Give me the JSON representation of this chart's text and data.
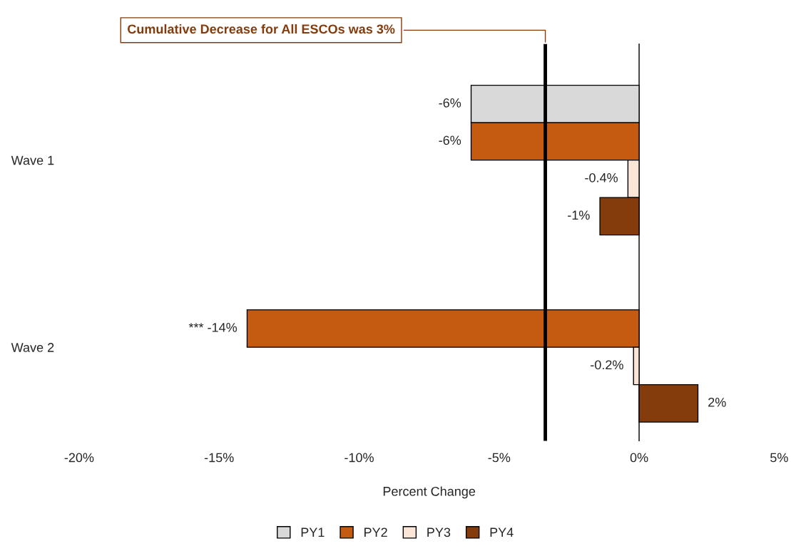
{
  "chart_data": {
    "type": "bar",
    "orientation": "horizontal",
    "categories": [
      "Wave 1",
      "Wave 2"
    ],
    "series": [
      {
        "name": "PY1",
        "color": "#d9d9d9",
        "values": [
          -6,
          null
        ],
        "value_labels": [
          "-6%",
          null
        ]
      },
      {
        "name": "PY2",
        "color": "#c55a11",
        "values": [
          -6,
          -14
        ],
        "value_labels": [
          "-6%",
          "*** -14%"
        ]
      },
      {
        "name": "PY3",
        "color": "#fbe5d6",
        "values": [
          -0.4,
          -0.2
        ],
        "value_labels": [
          "-0.4%",
          "-0.2%"
        ]
      },
      {
        "name": "PY4",
        "color": "#843c0c",
        "values": [
          -1.4,
          2.1
        ],
        "value_labels": [
          "-1%",
          "2%"
        ]
      }
    ],
    "xlim": [
      -20,
      5
    ],
    "xticks": [
      {
        "value": -20,
        "label": "-20%"
      },
      {
        "value": -15,
        "label": "-15%"
      },
      {
        "value": -10,
        "label": "-10%"
      },
      {
        "value": -5,
        "label": "-5%"
      },
      {
        "value": 0,
        "label": "0%"
      },
      {
        "value": 5,
        "label": "5%"
      }
    ],
    "xlabel": "Percent Change",
    "ref_lines": [
      {
        "axis": "x",
        "value": -3.35,
        "label": "Cumulative Decrease for All ESCOs was 3%",
        "color": "#000000"
      }
    ],
    "legend": "bottom",
    "grid": false
  }
}
